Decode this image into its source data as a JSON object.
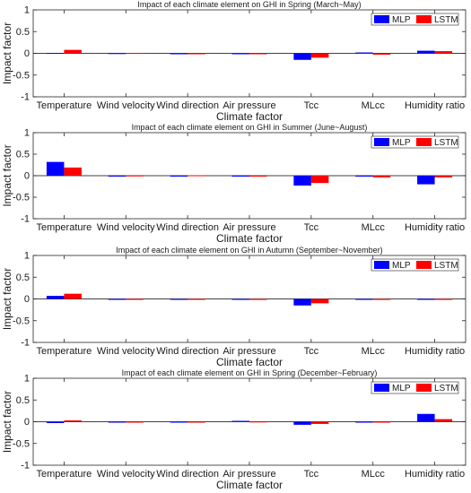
{
  "chart_data": [
    {
      "type": "bar",
      "title": "Impact of each climate element on GHI in Spring (March~May)",
      "xlabel": "Climate factor",
      "ylabel": "Impact factor",
      "ylim": [
        -1,
        1
      ],
      "yticks": [
        "-1",
        "-0.5",
        "0",
        "0.5",
        "1"
      ],
      "grid": false,
      "legend_position": "top-right",
      "categories": [
        "Temperature",
        "Wind velocity",
        "Wind direction",
        "Air pressure",
        "Tcc",
        "MLcc",
        "Humidity ratio"
      ],
      "series": [
        {
          "name": "MLP",
          "color": "#0000ff",
          "values": [
            0.01,
            0.005,
            -0.005,
            0.0,
            -0.15,
            0.02,
            0.06
          ]
        },
        {
          "name": "LSTM",
          "color": "#ff0000",
          "values": [
            0.08,
            0.01,
            -0.005,
            0.0,
            -0.1,
            -0.03,
            0.05
          ]
        }
      ]
    },
    {
      "type": "bar",
      "title": "Impact of each climate element on GHI in Summer (June~August)",
      "xlabel": "Climate factor",
      "ylabel": "Impact factor",
      "ylim": [
        -1,
        1
      ],
      "yticks": [
        "-1",
        "-0.5",
        "0",
        "0.5",
        "1"
      ],
      "grid": false,
      "legend_position": "top-right",
      "categories": [
        "Temperature",
        "Wind velocity",
        "Wind direction",
        "Air pressure",
        "Tcc",
        "MLcc",
        "Humidity ratio"
      ],
      "series": [
        {
          "name": "MLP",
          "color": "#0000ff",
          "values": [
            0.32,
            -0.02,
            0.0,
            -0.01,
            -0.23,
            -0.01,
            -0.2
          ]
        },
        {
          "name": "LSTM",
          "color": "#ff0000",
          "values": [
            0.19,
            0.005,
            0.01,
            -0.01,
            -0.17,
            -0.04,
            -0.04
          ]
        }
      ]
    },
    {
      "type": "bar",
      "title": "Impact of each climate element on GHI in Autumn (September~November)",
      "xlabel": "Climate factor",
      "ylabel": "Impact factor",
      "ylim": [
        -1,
        1
      ],
      "yticks": [
        "-1",
        "-0.5",
        "0",
        "0.5",
        "1"
      ],
      "grid": false,
      "legend_position": "top-right",
      "categories": [
        "Temperature",
        "Wind velocity",
        "Wind direction",
        "Air pressure",
        "Tcc",
        "MLcc",
        "Humidity ratio"
      ],
      "series": [
        {
          "name": "MLP",
          "color": "#0000ff",
          "values": [
            0.07,
            -0.01,
            0.0,
            0.0,
            -0.15,
            -0.01,
            0.0
          ]
        },
        {
          "name": "LSTM",
          "color": "#ff0000",
          "values": [
            0.12,
            -0.01,
            0.0,
            -0.005,
            -0.1,
            0.0,
            -0.005
          ]
        }
      ]
    },
    {
      "type": "bar",
      "title": "Impact of each climate element on GHI in Spring (December~February)",
      "xlabel": "Climate factor",
      "ylabel": "Impact factor",
      "ylim": [
        -1,
        1
      ],
      "yticks": [
        "-1",
        "-0.5",
        "0",
        "0.5",
        "1"
      ],
      "grid": false,
      "legend_position": "top-right",
      "categories": [
        "Temperature",
        "Wind velocity",
        "Wind direction",
        "Air pressure",
        "Tcc",
        "MLcc",
        "Humidity ratio"
      ],
      "series": [
        {
          "name": "MLP",
          "color": "#0000ff",
          "values": [
            -0.03,
            0.0,
            -0.005,
            0.02,
            -0.07,
            -0.01,
            0.18
          ]
        },
        {
          "name": "LSTM",
          "color": "#ff0000",
          "values": [
            0.03,
            0.0,
            -0.005,
            0.005,
            -0.05,
            -0.02,
            0.06
          ]
        }
      ]
    }
  ]
}
